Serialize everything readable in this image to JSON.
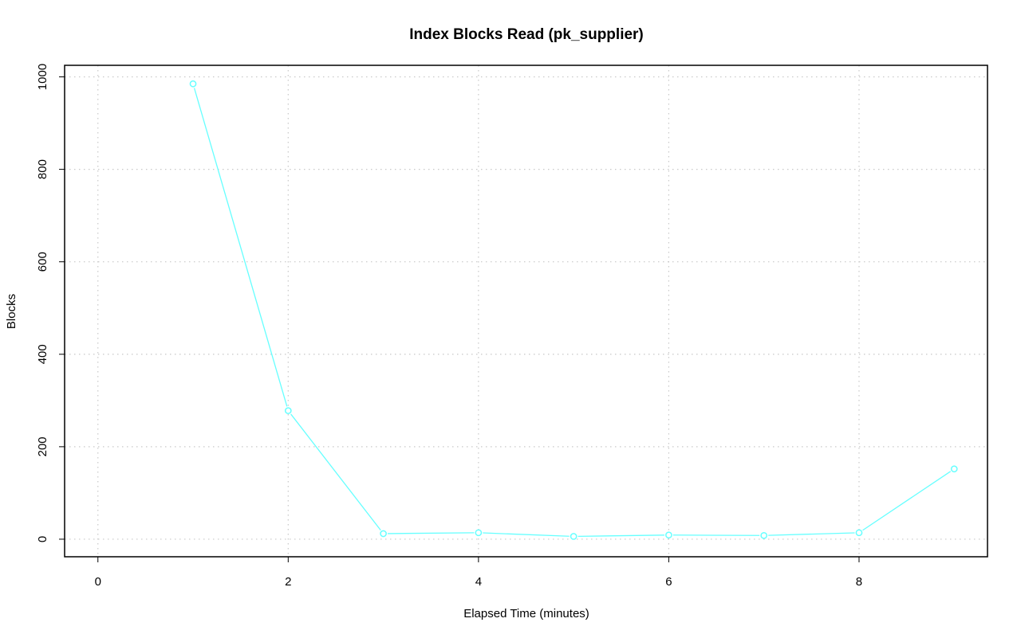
{
  "chart_data": {
    "type": "line",
    "title": "Index Blocks Read (pk_supplier)",
    "xlabel": "Elapsed Time (minutes)",
    "ylabel": "Blocks",
    "xlim": [
      -0.35,
      9.35
    ],
    "ylim": [
      -38,
      1025
    ],
    "x_ticks": [
      0,
      2,
      4,
      6,
      8
    ],
    "y_ticks": [
      0,
      200,
      400,
      600,
      800,
      1000
    ],
    "grid": true,
    "series": [
      {
        "color": "#66ffff",
        "x": [
          1,
          2,
          3,
          4,
          5,
          6,
          7,
          8,
          9
        ],
        "y": [
          985,
          278,
          12,
          14,
          6,
          9,
          8,
          14,
          152
        ]
      }
    ]
  }
}
